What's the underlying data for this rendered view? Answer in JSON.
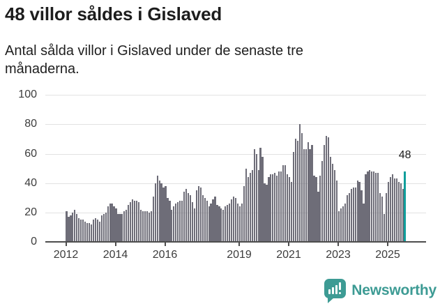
{
  "header": {
    "title": "48 villor såldes i Gislaved",
    "subtitle": "Antal sålda villor i Gislaved under de senaste tre månaderna."
  },
  "chart_data": {
    "type": "bar",
    "title": "48 villor såldes i Gislaved",
    "x_unit": "month",
    "start": "2012-01",
    "end": "2025-09",
    "values": [
      21,
      17,
      18,
      20,
      22,
      19,
      16,
      15,
      15,
      14,
      13,
      13,
      12,
      15,
      16,
      15,
      14,
      18,
      19,
      20,
      24,
      26,
      26,
      24,
      23,
      19,
      19,
      19,
      21,
      22,
      25,
      27,
      29,
      28,
      28,
      27,
      22,
      21,
      21,
      21,
      20,
      21,
      31,
      40,
      45,
      42,
      40,
      37,
      38,
      30,
      28,
      22,
      24,
      26,
      27,
      28,
      28,
      34,
      36,
      33,
      32,
      27,
      23,
      35,
      38,
      37,
      32,
      30,
      28,
      24,
      26,
      29,
      31,
      25,
      24,
      23,
      22,
      24,
      25,
      26,
      29,
      31,
      30,
      26,
      24,
      26,
      38,
      50,
      44,
      47,
      49,
      63,
      60,
      49,
      64,
      58,
      40,
      39,
      44,
      46,
      46,
      47,
      45,
      48,
      48,
      52,
      52,
      46,
      44,
      41,
      61,
      70,
      69,
      80,
      74,
      63,
      63,
      68,
      63,
      66,
      45,
      44,
      34,
      45,
      55,
      66,
      72,
      71,
      58,
      53,
      49,
      42,
      21,
      23,
      24,
      26,
      32,
      33,
      36,
      37,
      37,
      42,
      41,
      35,
      26,
      46,
      48,
      49,
      48,
      48,
      47,
      47,
      33,
      31,
      19,
      33,
      41,
      44,
      46,
      43,
      43,
      41,
      40,
      36,
      48
    ],
    "highlight_index": 164,
    "highlight_value": 48,
    "highlight_label": "48",
    "yticks": [
      0,
      20,
      40,
      60,
      80,
      100
    ],
    "ylim": [
      0,
      100
    ],
    "xticks": [
      2012,
      2014,
      2016,
      2019,
      2021,
      2023,
      2025
    ],
    "grid": true,
    "legend": false
  },
  "colors": {
    "bar": "#6E6D78",
    "highlight": "#109E9B",
    "text": "#1D1D1D",
    "axis_label": "#3C3C3C",
    "gridline": "#E2E2E2",
    "axis_line": "#4D4D4D",
    "brand": "#3D9B94"
  },
  "footer": {
    "brand": "Newsworthy"
  }
}
